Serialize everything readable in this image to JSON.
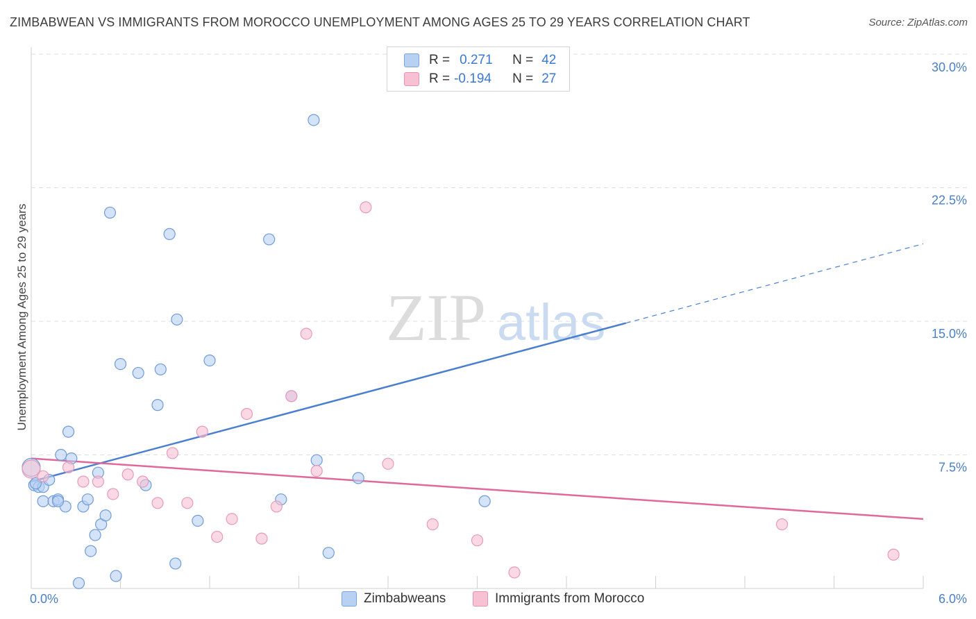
{
  "title": "ZIMBABWEAN VS IMMIGRANTS FROM MOROCCO UNEMPLOYMENT AMONG AGES 25 TO 29 YEARS CORRELATION CHART",
  "source": "Source: ZipAtlas.com",
  "watermark": {
    "zip": "ZIP",
    "atlas": "atlas"
  },
  "legend": {
    "r_label": "R =",
    "n_label": "N =",
    "series1": {
      "r": "0.271",
      "n": "42"
    },
    "series2": {
      "r": "-0.194",
      "n": "27"
    }
  },
  "bottom_legend": {
    "series1": "Zimbabweans",
    "series2": "Immigrants from Morocco"
  },
  "colors": {
    "blue": "#4a7fd0",
    "blue_fill": "#b8d1f3",
    "pink": "#e0689a",
    "pink_fill": "#f7c0d3"
  },
  "chart_data": {
    "type": "scatter",
    "xlabel": "",
    "ylabel": "Unemployment Among Ages 25 to 29 years",
    "xlim": [
      0.0,
      6.0
    ],
    "ylim": [
      0.0,
      30.0
    ],
    "x_tick_labels": [
      "0.0%",
      "6.0%"
    ],
    "y_ticks": [
      7.5,
      15.0,
      22.5,
      30.0
    ],
    "y_tick_labels": [
      "7.5%",
      "15.0%",
      "22.5%",
      "30.0%"
    ],
    "series": [
      {
        "name": "Zimbabweans",
        "color": "#4a7fd0",
        "r": 0.271,
        "n": 42,
        "trend": {
          "x0": 0.0,
          "y0": 6.0,
          "x1": 4.0,
          "y1": 14.9,
          "dash_to_x": 6.0,
          "dash_to_y": 19.35
        },
        "points": [
          [
            0.0,
            6.8
          ],
          [
            0.02,
            5.8
          ],
          [
            0.05,
            5.7
          ],
          [
            0.08,
            5.7
          ],
          [
            0.08,
            4.9
          ],
          [
            0.12,
            6.1
          ],
          [
            0.15,
            4.9
          ],
          [
            0.18,
            5.0
          ],
          [
            0.2,
            7.5
          ],
          [
            0.23,
            4.6
          ],
          [
            0.25,
            8.8
          ],
          [
            0.27,
            7.3
          ],
          [
            0.32,
            0.3
          ],
          [
            0.35,
            4.6
          ],
          [
            0.38,
            5.0
          ],
          [
            0.4,
            2.1
          ],
          [
            0.43,
            3.0
          ],
          [
            0.45,
            6.5
          ],
          [
            0.47,
            3.6
          ],
          [
            0.5,
            4.1
          ],
          [
            0.53,
            21.1
          ],
          [
            0.57,
            0.7
          ],
          [
            0.6,
            12.6
          ],
          [
            0.72,
            12.1
          ],
          [
            0.77,
            5.8
          ],
          [
            0.85,
            10.3
          ],
          [
            0.87,
            12.3
          ],
          [
            0.93,
            19.9
          ],
          [
            0.97,
            1.4
          ],
          [
            0.98,
            15.1
          ],
          [
            1.12,
            3.8
          ],
          [
            1.2,
            12.8
          ],
          [
            1.6,
            19.6
          ],
          [
            1.68,
            5.0
          ],
          [
            1.75,
            10.8
          ],
          [
            1.9,
            26.3
          ],
          [
            1.92,
            7.2
          ],
          [
            2.0,
            2.0
          ],
          [
            2.2,
            6.2
          ],
          [
            3.05,
            4.9
          ],
          [
            0.03,
            5.9
          ],
          [
            0.18,
            4.9
          ]
        ]
      },
      {
        "name": "Immigrants from Morocco",
        "color": "#e0689a",
        "r": -0.194,
        "n": 27,
        "trend": {
          "x0": 0.0,
          "y0": 7.3,
          "x1": 6.0,
          "y1": 3.9
        },
        "points": [
          [
            0.0,
            6.7
          ],
          [
            0.08,
            6.3
          ],
          [
            0.25,
            6.8
          ],
          [
            0.35,
            6.0
          ],
          [
            0.45,
            6.0
          ],
          [
            0.55,
            5.3
          ],
          [
            0.65,
            6.4
          ],
          [
            0.75,
            6.0
          ],
          [
            0.85,
            4.8
          ],
          [
            0.95,
            7.6
          ],
          [
            1.05,
            4.8
          ],
          [
            1.15,
            8.8
          ],
          [
            1.25,
            2.9
          ],
          [
            1.35,
            3.9
          ],
          [
            1.45,
            9.8
          ],
          [
            1.55,
            2.8
          ],
          [
            1.65,
            4.6
          ],
          [
            1.75,
            10.8
          ],
          [
            1.85,
            14.3
          ],
          [
            1.92,
            6.6
          ],
          [
            2.25,
            21.4
          ],
          [
            2.4,
            7.0
          ],
          [
            2.7,
            3.6
          ],
          [
            3.0,
            2.7
          ],
          [
            3.25,
            0.9
          ],
          [
            5.05,
            3.6
          ],
          [
            5.8,
            1.9
          ]
        ]
      }
    ]
  }
}
